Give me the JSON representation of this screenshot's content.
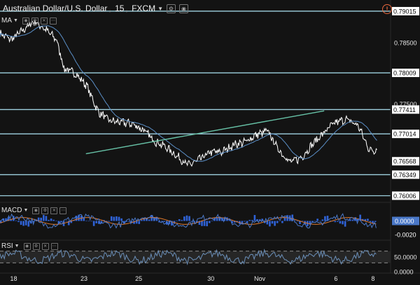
{
  "header": {
    "symbol": "Australian Dollar/U.S. Dollar",
    "interval": "15",
    "source": "FXCM",
    "alert_glyph": "!"
  },
  "indicators": {
    "ma_label": "MA",
    "macd_label": "MACD",
    "rsi_label": "RSI"
  },
  "colors": {
    "background": "#131313",
    "price": "#ffffff",
    "ma": "#5b8fc7",
    "horizontal_levels": "#9fd1e0",
    "trendline": "#67c2a7",
    "macd_line": "#4a78c8",
    "macd_signal": "#e07a2e",
    "macd_hist": "#2f62d6",
    "rsi_line": "#6b8fb8",
    "rsi_band": "#262626",
    "label_bg": "#ffffff",
    "label_text": "#000000",
    "axis_text": "#e6e6e6"
  },
  "chart_data": [
    {
      "type": "line",
      "pane": "price",
      "y_tick_labels": [
        "0.78500",
        "0.77500"
      ],
      "ylim": [
        0.7592,
        0.7906
      ],
      "x_tick_labels": [
        "18",
        "23",
        "25",
        "30",
        "Nov",
        "6",
        "8"
      ],
      "grid": false,
      "horizontal_levels": [
        {
          "value": 0.79015,
          "label": "0.79015"
        },
        {
          "value": 0.78009,
          "label": "0.78009"
        },
        {
          "value": 0.77411,
          "label": "0.77411"
        },
        {
          "value": 0.77014,
          "label": "0.77014"
        },
        {
          "value": 0.76349,
          "label": "0.76349"
        },
        {
          "value": 0.76006,
          "label": "0.76006"
        }
      ],
      "last_price": {
        "value": 0.76568,
        "label": "0.76568"
      },
      "trendline": {
        "start": [
          0.22,
          0.7669
        ],
        "end": [
          0.83,
          0.7739
        ]
      },
      "series": [
        {
          "values_x": [
            0.0,
            0.03,
            0.06,
            0.09,
            0.12,
            0.15,
            0.17,
            0.2,
            0.23,
            0.26,
            0.29,
            0.32,
            0.35,
            0.38,
            0.41,
            0.44,
            0.47,
            0.5,
            0.53,
            0.56,
            0.59,
            0.62,
            0.65,
            0.68,
            0.71,
            0.74,
            0.77,
            0.8,
            0.83,
            0.86,
            0.89,
            0.92,
            0.95,
            0.98
          ],
          "values": [
            0.7865,
            0.7855,
            0.787,
            0.7885,
            0.7872,
            0.7855,
            0.7808,
            0.78,
            0.778,
            0.7738,
            0.7723,
            0.772,
            0.7718,
            0.7708,
            0.769,
            0.768,
            0.7665,
            0.765,
            0.766,
            0.7672,
            0.7672,
            0.7684,
            0.7688,
            0.77,
            0.7706,
            0.7675,
            0.7655,
            0.7663,
            0.7685,
            0.7704,
            0.772,
            0.7725,
            0.7715,
            0.7675
          ]
        }
      ]
    },
    {
      "type": "line",
      "pane": "macd",
      "y_tick_labels": [
        "0.0000",
        "-0.0020"
      ],
      "ylim": [
        -0.0026,
        0.0024
      ]
    },
    {
      "type": "line",
      "pane": "rsi",
      "y_tick_labels": [
        "50.0000",
        "0.0000"
      ],
      "ylim": [
        0,
        100
      ]
    }
  ]
}
